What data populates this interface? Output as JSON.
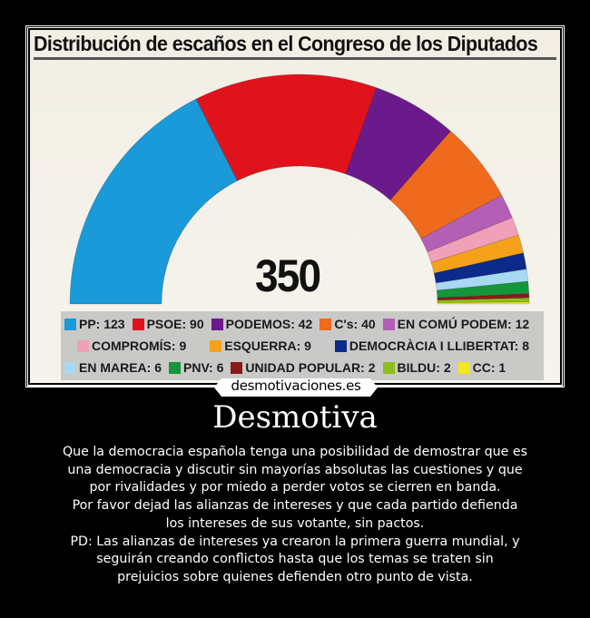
{
  "poster": {
    "title": "Distribución de escaños en el Congreso de los Diputados",
    "total_label": "350"
  },
  "watermark": {
    "site": "desmotivaciones.es"
  },
  "caption": {
    "heading": "Desmotiva",
    "lines": [
      "Que la democracia española tenga una posibilidad de demostrar que es",
      "una democracia y discutir sin mayorías absolutas las cuestiones y que",
      "por rivalidades y por miedo a perder votos se cierren en banda.",
      "Por favor dejad las alianzas de intereses y que cada partido defienda",
      "los intereses de sus votante, sin pactos.",
      "PD: Las alianzas de intereses ya crearon la primera guerra mundial, y",
      "seguirán creando conflictos  hasta que los temas se traten sin",
      "prejuicios sobre quienes defienden otro punto de vista."
    ]
  },
  "legend": {
    "rows": [
      [
        {
          "label": "PP: 123",
          "color": "#1a9ad8"
        },
        {
          "label": "PSOE: 90",
          "color": "#e0121b"
        },
        {
          "label": "PODEMOS: 42",
          "color": "#6b1a8c"
        },
        {
          "label": "C's: 40",
          "color": "#ef6a1c"
        },
        {
          "label": "EN COMÚ PODEM: 12",
          "color": "#b35fb5"
        }
      ],
      [
        {
          "label": "COMPROMÍS: 9",
          "color": "#f0a0b8"
        },
        {
          "label": "ESQUERRA: 9",
          "color": "#f5a21a"
        },
        {
          "label": "DEMOCRÀCIA I LLIBERTAT: 8",
          "color": "#0c2a8a"
        }
      ],
      [
        {
          "label": "EN MAREA: 6",
          "color": "#a8d8f2"
        },
        {
          "label": "PNV: 6",
          "color": "#15963a"
        },
        {
          "label": "UNIDAD POPULAR: 2",
          "color": "#8a1a1a"
        },
        {
          "label": "BILDU: 2",
          "color": "#8cbf1e"
        },
        {
          "label": "CC: 1",
          "color": "#f2e81e"
        }
      ]
    ]
  },
  "chart_data": {
    "type": "pie",
    "subtype": "semicircle-parliament",
    "title": "Distribución de escaños en el Congreso de los Diputados",
    "total": 350,
    "categories": [
      "PP",
      "PSOE",
      "PODEMOS",
      "C's",
      "EN COMÚ PODEM",
      "COMPROMÍS",
      "ESQUERRA",
      "DEMOCRÀCIA I LLIBERTAT",
      "EN MAREA",
      "PNV",
      "UNIDAD POPULAR",
      "BILDU",
      "CC"
    ],
    "values": [
      123,
      90,
      42,
      40,
      12,
      9,
      9,
      8,
      6,
      6,
      2,
      2,
      1
    ],
    "colors": [
      "#1a9ad8",
      "#e0121b",
      "#6b1a8c",
      "#ef6a1c",
      "#b35fb5",
      "#f0a0b8",
      "#f5a21a",
      "#0c2a8a",
      "#a8d8f2",
      "#15963a",
      "#8a1a1a",
      "#8cbf1e",
      "#f2e81e"
    ],
    "legend_position": "bottom"
  }
}
